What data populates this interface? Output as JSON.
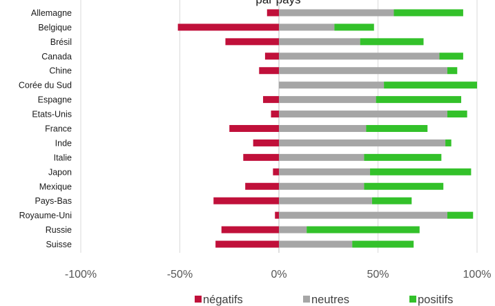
{
  "chart_data": {
    "type": "bar",
    "orientation": "horizontal",
    "stacked": true,
    "title": "par pays",
    "categories": [
      "Allemagne",
      "Belgique",
      "Brésil",
      "Canada",
      "Chine",
      "Corée du Sud",
      "Espagne",
      "Etats-Unis",
      "France",
      "Inde",
      "Italie",
      "Japon",
      "Mexique",
      "Pays-Bas",
      "Royaume-Uni",
      "Russie",
      "Suisse"
    ],
    "series": [
      {
        "name": "négatifs",
        "color": "#c0103a",
        "values": [
          -6,
          -51,
          -27,
          -7,
          -10,
          0,
          -8,
          -4,
          -25,
          -13,
          -18,
          -3,
          -17,
          -33,
          -2,
          -29,
          -32
        ]
      },
      {
        "name": "neutres",
        "color": "#a6a6a6",
        "values": [
          58,
          28,
          41,
          81,
          85,
          53,
          49,
          85,
          44,
          84,
          43,
          46,
          43,
          47,
          85,
          14,
          37
        ]
      },
      {
        "name": "positifs",
        "color": "#33c12a",
        "values": [
          35,
          20,
          32,
          12,
          5,
          47,
          43,
          10,
          31,
          3,
          39,
          51,
          40,
          20,
          13,
          57,
          31
        ]
      }
    ],
    "xlim": [
      -100,
      100
    ],
    "xticks": [
      "-100%",
      "-50%",
      "0%",
      "50%",
      "100%"
    ],
    "grid": true,
    "legend_position": "bottom"
  }
}
